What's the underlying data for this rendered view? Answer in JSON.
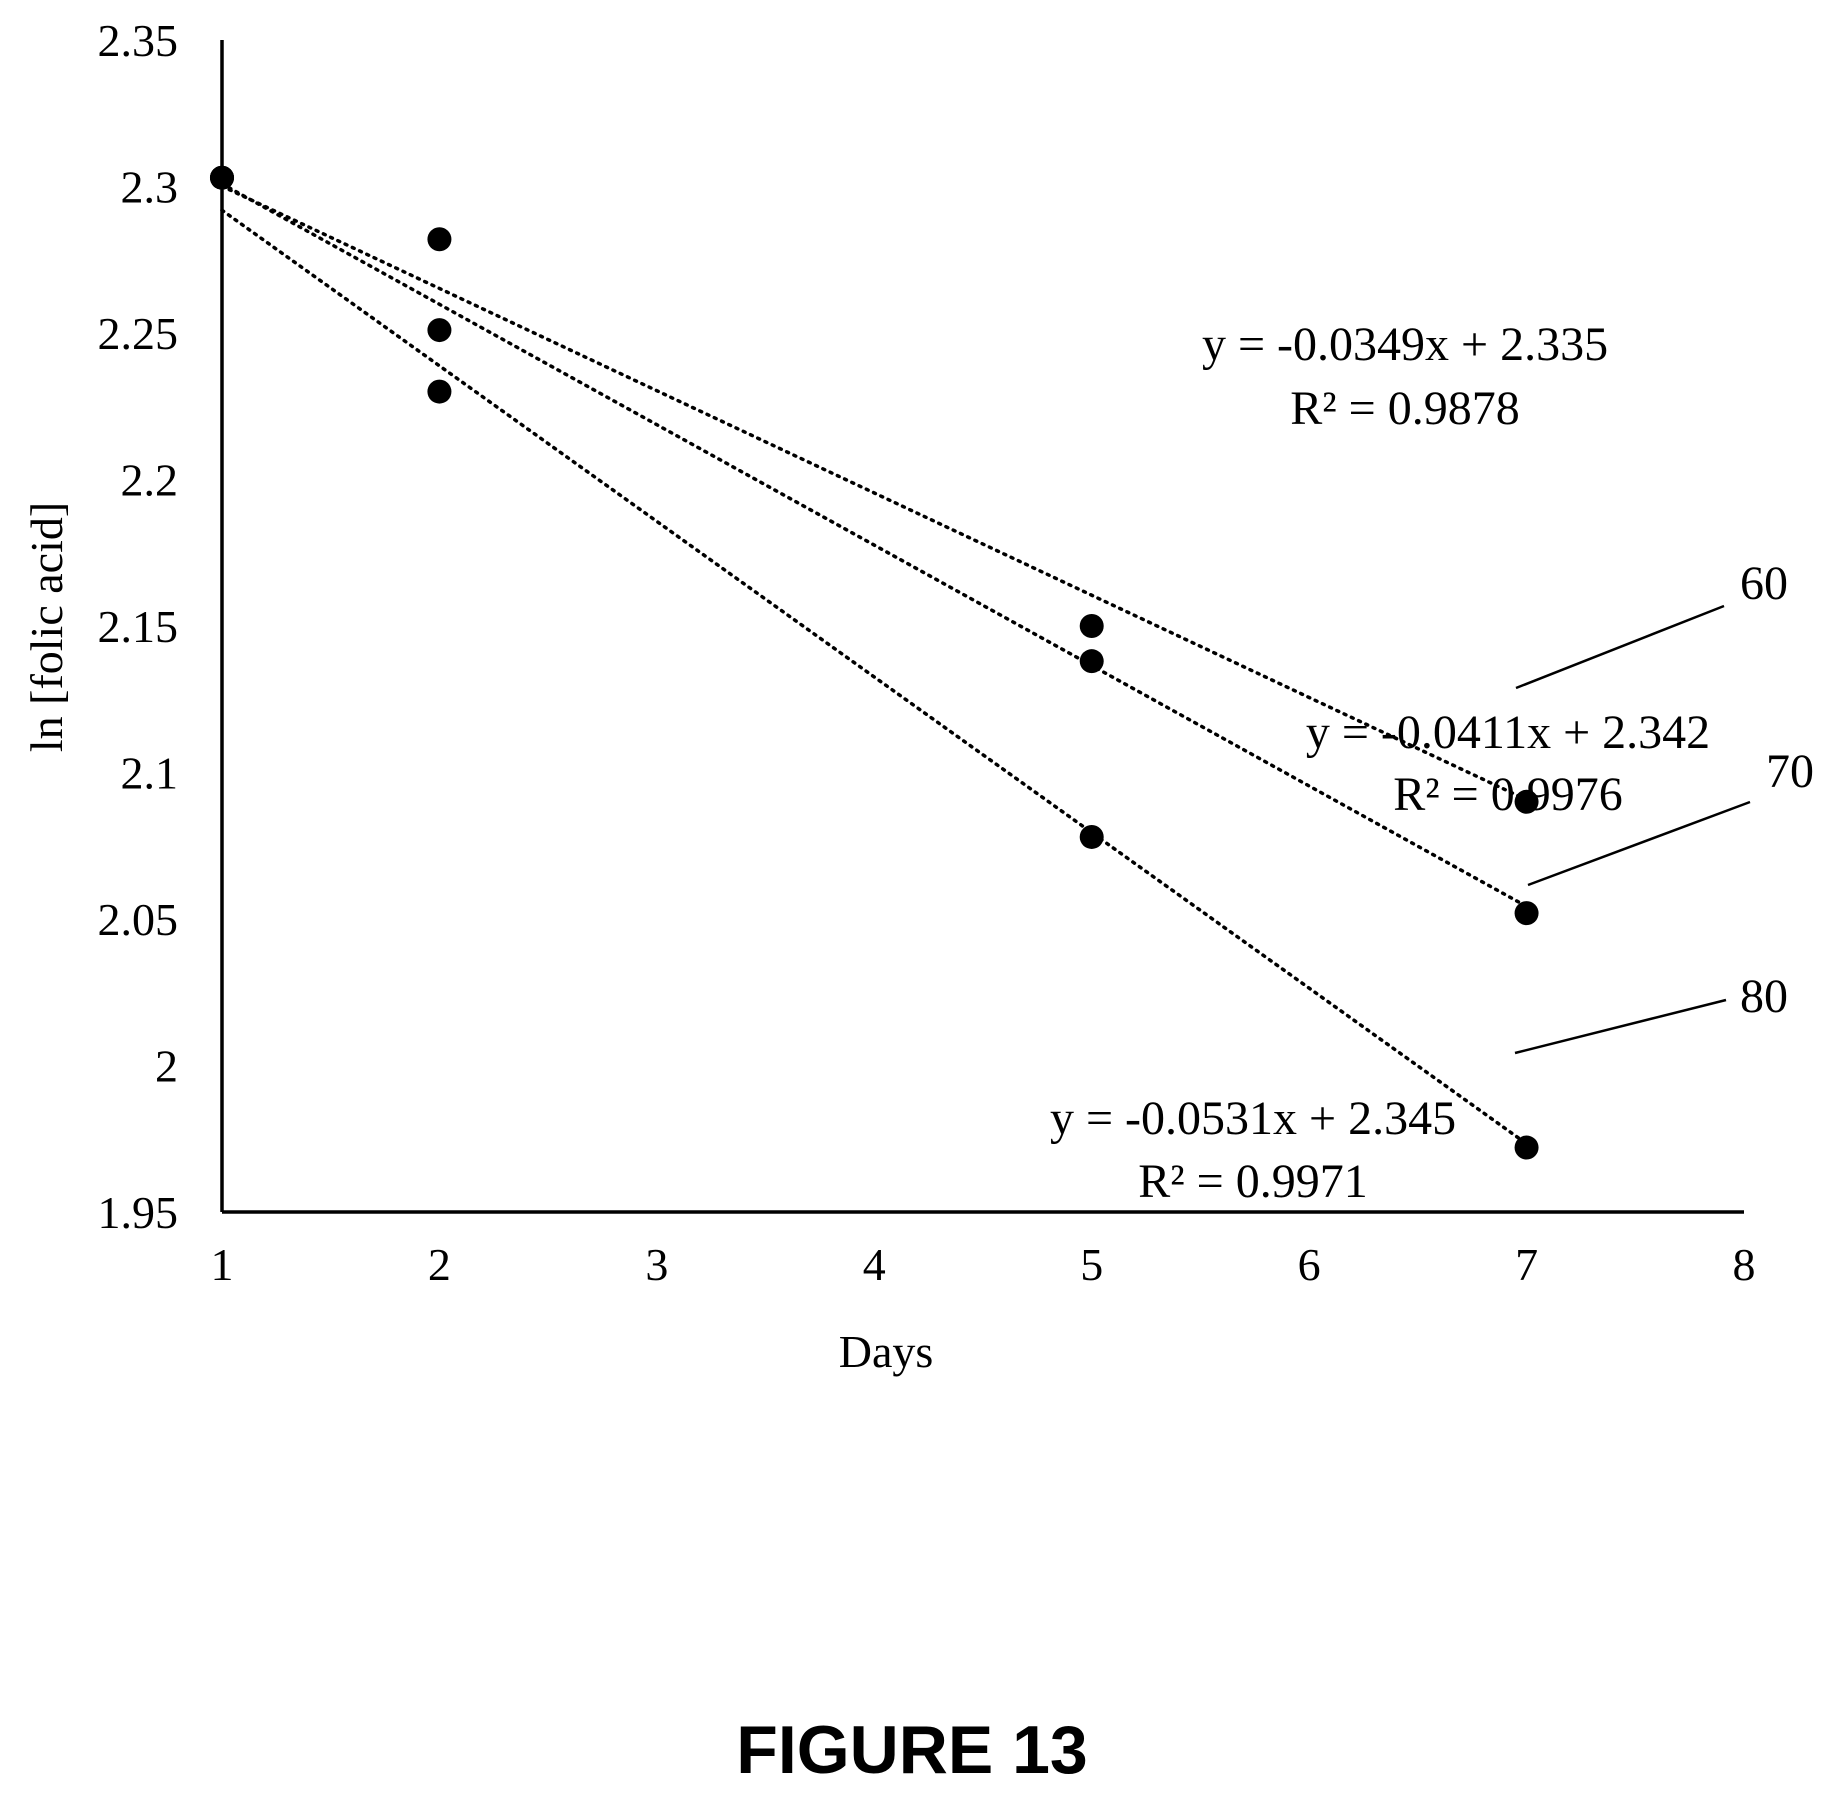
{
  "figure_label": "FIGURE 13",
  "chart_data": {
    "type": "scatter",
    "xlabel": "Days",
    "ylabel": "ln [folic acid]",
    "xlim": [
      1,
      8
    ],
    "ylim": [
      1.95,
      2.35
    ],
    "x_ticks": [
      "1",
      "2",
      "3",
      "4",
      "5",
      "6",
      "7",
      "8"
    ],
    "y_ticks": [
      "1.95",
      "2",
      "2.05",
      "2.1",
      "2.15",
      "2.2",
      "2.25",
      "2.3",
      "2.35"
    ],
    "grid": false,
    "legend": "none",
    "trendline_style": "dotted",
    "marker_color": "#000000",
    "series": [
      {
        "reference": "60",
        "points": [
          [
            1,
            2.303
          ],
          [
            2,
            2.282
          ],
          [
            5,
            2.15
          ],
          [
            7,
            2.09
          ]
        ],
        "trendline": {
          "slope": -0.0349,
          "intercept": 2.335
        },
        "equation": "y = -0.0349x + 2.335",
        "r_squared": "R² = 0.9878"
      },
      {
        "reference": "70",
        "points": [
          [
            1,
            2.303
          ],
          [
            2,
            2.251
          ],
          [
            5,
            2.138
          ],
          [
            7,
            2.052
          ]
        ],
        "trendline": {
          "slope": -0.0411,
          "intercept": 2.342
        },
        "equation": "y = -0.0411x + 2.342",
        "r_squared": "R² = 0.9976"
      },
      {
        "reference": "80",
        "points": [
          [
            1,
            2.303
          ],
          [
            2,
            2.23
          ],
          [
            5,
            2.078
          ],
          [
            7,
            1.972
          ]
        ],
        "trendline": {
          "slope": -0.0531,
          "intercept": 2.345
        },
        "equation": "y = -0.0531x + 2.345",
        "r_squared": "R² = 0.9971"
      }
    ]
  }
}
